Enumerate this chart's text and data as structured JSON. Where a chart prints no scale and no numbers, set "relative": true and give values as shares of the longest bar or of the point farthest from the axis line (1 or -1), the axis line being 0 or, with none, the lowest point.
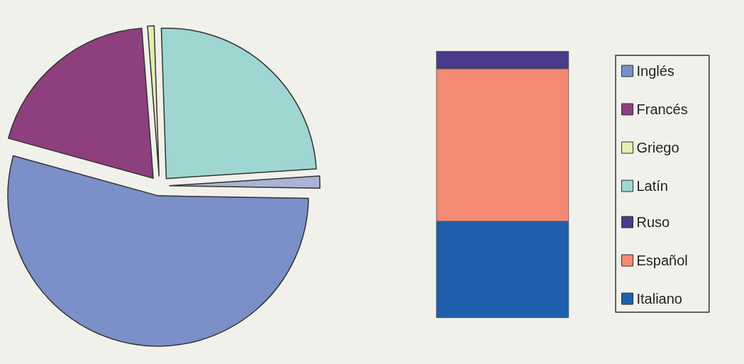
{
  "chart_data": [
    {
      "type": "pie",
      "categories": [
        "Inglés",
        "Francés",
        "Griego",
        "Latín",
        null
      ],
      "values": [
        54,
        19.5,
        0.7,
        24.5,
        1.3
      ],
      "colors": [
        "#7b8fc8",
        "#8e3f7e",
        "#e3eeb0",
        "#9fd6d2",
        "#a9b4d6"
      ],
      "legend": "right"
    },
    {
      "type": "bar",
      "stacked": true,
      "relative": true,
      "categories": [
        null
      ],
      "legend": "right",
      "series": [
        {
          "name": "Italiano",
          "color": "#1f5fae",
          "values": [
            0.362
          ]
        },
        {
          "name": "Español",
          "color": "#f48a74",
          "values": [
            0.572
          ]
        },
        {
          "name": "Ruso",
          "color": "#4b3a8a",
          "values": [
            0.066
          ]
        }
      ]
    }
  ]
}
